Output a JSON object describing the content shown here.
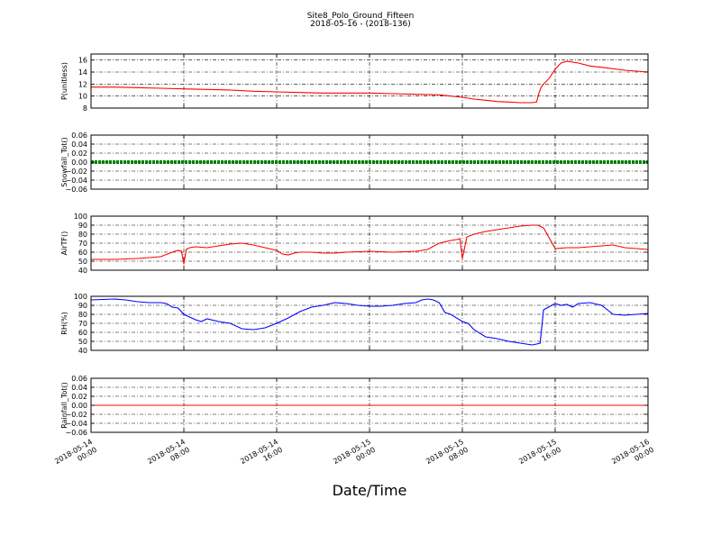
{
  "chart_data": {
    "type": "line",
    "title": "Site8_Polo_Ground_Fifteen",
    "subtitle": "2018-05-16 - (2018-136)",
    "xlabel": "Date/Time",
    "x_ticks": [
      "2018-05-14 00:00",
      "2018-05-14 08:00",
      "2018-05-14 16:00",
      "2018-05-15 00:00",
      "2018-05-15 08:00",
      "2018-05-15 16:00",
      "2018-05-16 00:00"
    ],
    "x_tick_lines": [
      [
        "2018-05-14",
        "00:00"
      ],
      [
        "2018-05-14",
        "08:00"
      ],
      [
        "2018-05-14",
        "16:00"
      ],
      [
        "2018-05-15",
        "00:00"
      ],
      [
        "2018-05-15",
        "08:00"
      ],
      [
        "2018-05-15",
        "16:00"
      ],
      [
        "2018-05-16",
        "00:00"
      ]
    ],
    "x_range_hours": [
      0,
      48
    ],
    "grid": true,
    "panels": [
      {
        "ylabel": "P(unitless)",
        "ylim": [
          8,
          17
        ],
        "yticks": [
          8,
          10,
          12,
          14,
          16
        ],
        "ytick_labels": [
          "8",
          "10",
          "12",
          "14",
          "16"
        ],
        "color": "#ff0000",
        "x": [
          0,
          2,
          4,
          6,
          8,
          10,
          12,
          14,
          16,
          18,
          20,
          22,
          24,
          26,
          28,
          30,
          31,
          32,
          33,
          34,
          35,
          36,
          37,
          38,
          38.4,
          38.6,
          38.8,
          39,
          39.5,
          40,
          40.5,
          41,
          42,
          43,
          44,
          46,
          48
        ],
        "y": [
          11.5,
          11.5,
          11.4,
          11.3,
          11.2,
          11.1,
          11.0,
          10.8,
          10.7,
          10.6,
          10.5,
          10.5,
          10.5,
          10.4,
          10.3,
          10.2,
          10.0,
          9.8,
          9.5,
          9.3,
          9.1,
          9.0,
          8.9,
          8.9,
          9.0,
          10.5,
          11.5,
          12.0,
          13.0,
          14.5,
          15.5,
          15.8,
          15.5,
          15.0,
          14.8,
          14.3,
          14.0
        ]
      },
      {
        "ylabel": "Snowfall_Tot()",
        "ylim": [
          -0.06,
          0.06
        ],
        "yticks": [
          -0.06,
          -0.04,
          -0.02,
          0.0,
          0.02,
          0.04,
          0.06
        ],
        "ytick_labels": [
          "−0.06",
          "−0.04",
          "−0.02",
          "0.00",
          "0.02",
          "0.04",
          "0.06"
        ],
        "color": "#008000",
        "marker": "dots",
        "x": [
          0,
          48
        ],
        "y": [
          0,
          0
        ]
      },
      {
        "ylabel": "AirTF()",
        "ylim": [
          40,
          100
        ],
        "yticks": [
          40,
          50,
          60,
          70,
          80,
          90,
          100
        ],
        "ytick_labels": [
          "40",
          "50",
          "60",
          "70",
          "80",
          "90",
          "100"
        ],
        "color": "#ff0000",
        "x": [
          0,
          2,
          4,
          6,
          7,
          7.5,
          7.8,
          8.0,
          8.2,
          8.5,
          9,
          10,
          11,
          12,
          13,
          14,
          15,
          16,
          16.5,
          17,
          17.5,
          18,
          19,
          20,
          21,
          22,
          24,
          26,
          28,
          29,
          30,
          31,
          31.5,
          31.8,
          32,
          32.4,
          33,
          34,
          35,
          36,
          37,
          38,
          38.5,
          39,
          40,
          41,
          42,
          43,
          44,
          45,
          46,
          47,
          48
        ],
        "y": [
          52,
          52,
          53,
          55,
          60,
          62,
          61,
          47,
          63,
          65,
          66,
          65,
          67,
          69,
          70,
          68,
          65,
          62,
          58,
          57,
          59,
          60,
          60,
          59,
          59,
          60,
          61,
          60,
          61,
          63,
          70,
          73,
          74,
          75,
          53,
          77,
          80,
          83,
          85,
          87,
          89,
          90,
          90,
          87,
          64,
          65,
          65,
          66,
          67,
          68,
          65,
          64,
          63
        ]
      },
      {
        "ylabel": "RH(%)",
        "ylim": [
          40,
          100
        ],
        "yticks": [
          40,
          50,
          60,
          70,
          80,
          90,
          100
        ],
        "ytick_labels": [
          "40",
          "50",
          "60",
          "70",
          "80",
          "90",
          "100"
        ],
        "color": "#0000ff",
        "x": [
          0,
          2,
          3,
          4,
          5,
          6,
          6.5,
          7,
          7.5,
          8,
          9,
          9.5,
          10,
          11,
          12,
          13,
          14,
          15,
          16,
          17,
          18,
          19,
          20,
          21,
          22,
          23,
          24,
          25,
          26,
          27,
          28,
          28.5,
          29,
          29.5,
          30,
          30.5,
          31,
          32,
          32.5,
          33,
          34,
          35,
          36,
          37,
          38,
          38.4,
          38.7,
          39,
          40,
          40.5,
          41,
          41.5,
          42,
          43,
          44,
          45,
          46,
          47,
          48
        ],
        "y": [
          96,
          97,
          96,
          94,
          93,
          93,
          92,
          88,
          87,
          80,
          74,
          72,
          75,
          72,
          70,
          64,
          63,
          65,
          70,
          76,
          83,
          88,
          90,
          93,
          92,
          90,
          89,
          89,
          90,
          92,
          93,
          96,
          97,
          96,
          93,
          82,
          80,
          72,
          70,
          63,
          55,
          53,
          50,
          48,
          46,
          47,
          48,
          85,
          92,
          90,
          91,
          88,
          92,
          93,
          90,
          80,
          79,
          80,
          81
        ]
      },
      {
        "ylabel": "Rainfall_Tot()",
        "ylim": [
          -0.06,
          0.06
        ],
        "yticks": [
          -0.06,
          -0.04,
          -0.02,
          0.0,
          0.02,
          0.04,
          0.06
        ],
        "ytick_labels": [
          "−0.06",
          "−0.04",
          "−0.02",
          "0.00",
          "0.02",
          "0.04",
          "0.06"
        ],
        "color": "#ff0000",
        "x": [
          0,
          48
        ],
        "y": [
          0,
          0
        ]
      }
    ]
  }
}
